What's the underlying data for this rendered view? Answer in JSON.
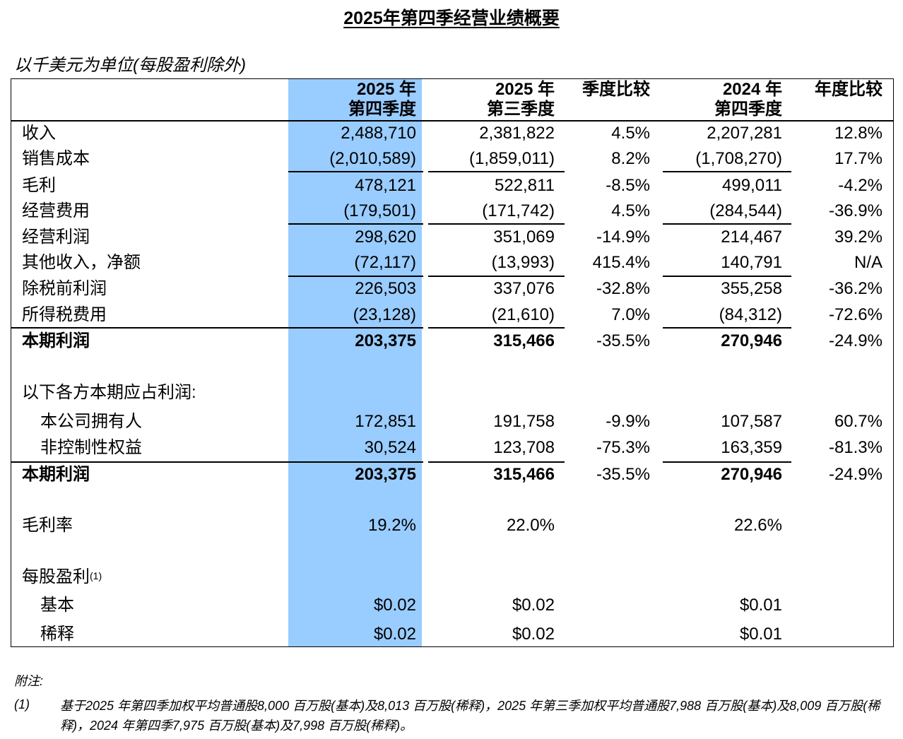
{
  "title": "2025年第四季经营业绩概要",
  "units_note": "以千美元为单位(每股盈利除外)",
  "columns": {
    "c1": [
      "2025 年",
      "第四季度"
    ],
    "c2": [
      "2025 年",
      "第三季度"
    ],
    "c3": [
      "季度比较"
    ],
    "c4": [
      "2024 年",
      "第四季度"
    ],
    "c5": [
      "年度比较"
    ]
  },
  "highlight_color": "#99ccff",
  "rows": [
    {
      "label": "收入",
      "c1": "2,488,710",
      "c2": "2,381,822",
      "c3": "4.5%",
      "c4": "2,207,281",
      "c5": "12.8%"
    },
    {
      "label": "销售成本",
      "c1": "(2,010,589)",
      "c2": "(1,859,011)",
      "c3": "8.2%",
      "c4": "(1,708,270)",
      "c5": "17.7%"
    },
    {
      "label": "毛利",
      "c1": "478,121",
      "c2": "522,811",
      "c3": "-8.5%",
      "c4": "499,011",
      "c5": "-4.2%"
    },
    {
      "label": "经营费用",
      "c1": "(179,501)",
      "c2": "(171,742)",
      "c3": "4.5%",
      "c4": "(284,544)",
      "c5": "-36.9%"
    },
    {
      "label": "经营利润",
      "c1": "298,620",
      "c2": "351,069",
      "c3": "-14.9%",
      "c4": "214,467",
      "c5": "39.2%"
    },
    {
      "label": "其他收入，净额",
      "c1": "(72,117)",
      "c2": "(13,993)",
      "c3": "415.4%",
      "c4": "140,791",
      "c5": "N/A"
    },
    {
      "label": "除税前利润",
      "c1": "226,503",
      "c2": "337,076",
      "c3": "-32.8%",
      "c4": "355,258",
      "c5": "-36.2%"
    },
    {
      "label": "所得税费用",
      "c1": "(23,128)",
      "c2": "(21,610)",
      "c3": "7.0%",
      "c4": "(84,312)",
      "c5": "-72.6%"
    },
    {
      "label": "本期利润",
      "c1": "203,375",
      "c2": "315,466",
      "c3": "-35.5%",
      "c4": "270,946",
      "c5": "-24.9%"
    },
    {
      "label": "以下各方本期应占利润:"
    },
    {
      "label": "本公司拥有人",
      "c1": "172,851",
      "c2": "191,758",
      "c3": "-9.9%",
      "c4": "107,587",
      "c5": "60.7%"
    },
    {
      "label": "非控制性权益",
      "c1": "30,524",
      "c2": "123,708",
      "c3": "-75.3%",
      "c4": "163,359",
      "c5": "-81.3%"
    },
    {
      "label": "本期利润",
      "c1": "203,375",
      "c2": "315,466",
      "c3": "-35.5%",
      "c4": "270,946",
      "c5": "-24.9%"
    },
    {
      "label": "毛利率",
      "c1": "19.2%",
      "c2": "22.0%",
      "c4": "22.6%"
    },
    {
      "label": "每股盈利",
      "footnote_marker": "(1)"
    },
    {
      "label": "基本",
      "c1": "$0.02",
      "c2": "$0.02",
      "c4": "$0.01"
    },
    {
      "label": "稀释",
      "c1": "$0.02",
      "c2": "$0.02",
      "c4": "$0.01"
    }
  ],
  "notes": {
    "title": "附注:",
    "items": [
      {
        "num": "(1)",
        "text": "基于2025 年第四季加权平均普通股8,000 百万股(基本)及8,013 百万股(稀释)，2025 年第三季加权平均普通股7,988 百万股(基本)及8,009 百万股(稀释)，2024 年第四季7,975 百万股(基本)及7,998 百万股(稀释)。"
      }
    ]
  }
}
